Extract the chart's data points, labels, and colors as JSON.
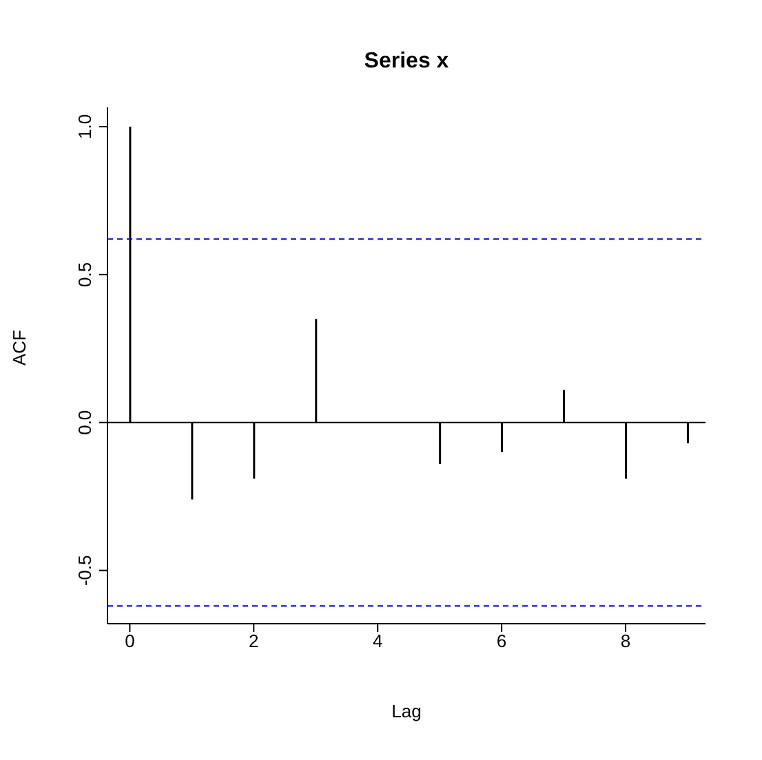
{
  "chart_data": {
    "type": "bar",
    "title": "Series  x",
    "xlabel": "Lag",
    "ylabel": "ACF",
    "x": [
      0,
      1,
      2,
      3,
      4,
      5,
      6,
      7,
      8,
      9
    ],
    "values": [
      1.0,
      -0.26,
      -0.19,
      0.35,
      0.0,
      -0.14,
      -0.1,
      0.11,
      -0.19,
      -0.07
    ],
    "color": "#000000",
    "xlim": [
      -0.36,
      9.29
    ],
    "xticks": [
      0,
      2,
      4,
      6,
      8
    ],
    "ylim": [
      -0.68,
      1.065
    ],
    "yticks": [
      -0.5,
      {
        "value": 0,
        "label": "0.0"
      },
      0.5,
      {
        "value": 1,
        "label": "1.0"
      }
    ],
    "ref_lines": [
      {
        "axis": "y",
        "value": 0.62,
        "color": "#0000cc",
        "line_style": "dashed"
      },
      {
        "axis": "y",
        "value": -0.62,
        "color": "#0000cc",
        "line_style": "dashed"
      },
      {
        "axis": "y",
        "value": 0,
        "color": "#000000",
        "line_style": "solid"
      }
    ],
    "grid": false,
    "legend": false
  }
}
